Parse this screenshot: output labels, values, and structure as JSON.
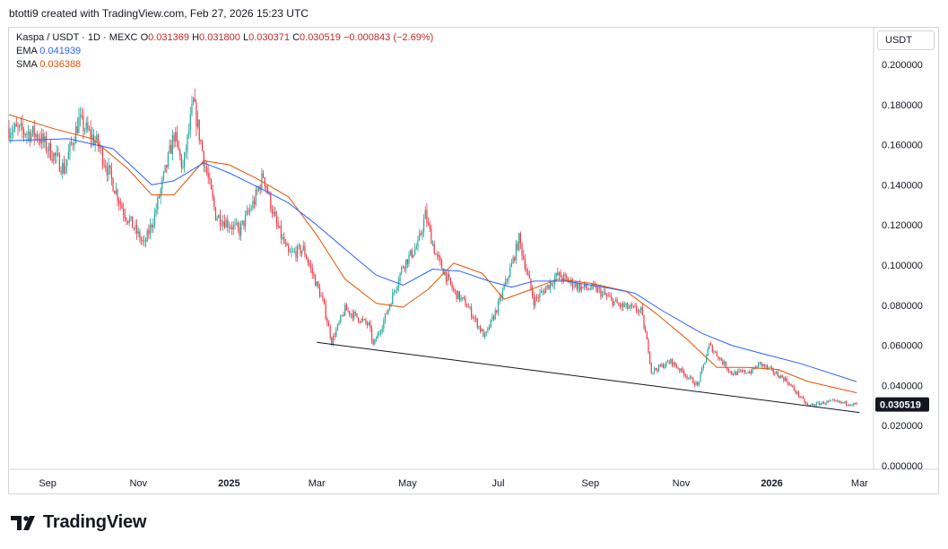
{
  "header": {
    "creator": "btotti9 created with TradingView.com, Feb 27, 2026 15:23 UTC"
  },
  "legend": {
    "symbol": "Kaspa / USDT · 1D · MEXC",
    "ohlc": {
      "o_label": "O",
      "o": "0.031369",
      "h_label": "H",
      "h": "0.031800",
      "l_label": "L",
      "l": "0.030371",
      "c_label": "C",
      "c": "0.030519",
      "change": "−0.000843 (−2.69%)"
    },
    "ema_label": "EMA",
    "ema_value": "0.041939",
    "sma_label": "SMA",
    "sma_value": "0.036388"
  },
  "currency": "USDT",
  "brand": {
    "name": "TradingView"
  },
  "colors": {
    "up": "#089981",
    "down": "#f23645",
    "candle_up": "#26a69a",
    "ema": "#2962ff",
    "sma": "#e65100",
    "trendline": "#131722",
    "price_tag_bg": "#131722"
  },
  "chart_data": {
    "type": "candlestick",
    "x_ticks": [
      {
        "date": "2024-09-01",
        "label": "Sep",
        "bold": false
      },
      {
        "date": "2024-11-01",
        "label": "Nov",
        "bold": false
      },
      {
        "date": "2025-01-01",
        "label": "2025",
        "bold": true
      },
      {
        "date": "2025-03-01",
        "label": "Mar",
        "bold": false
      },
      {
        "date": "2025-05-01",
        "label": "May",
        "bold": false
      },
      {
        "date": "2025-07-01",
        "label": "Jul",
        "bold": false
      },
      {
        "date": "2025-09-01",
        "label": "Sep",
        "bold": false
      },
      {
        "date": "2025-11-01",
        "label": "Nov",
        "bold": false
      },
      {
        "date": "2026-01-01",
        "label": "2026",
        "bold": true
      },
      {
        "date": "2026-03-01",
        "label": "Mar",
        "bold": false
      }
    ],
    "y_ticks": [
      "0.000000",
      "0.020000",
      "0.040000",
      "0.060000",
      "0.080000",
      "0.100000",
      "0.120000",
      "0.140000",
      "0.160000",
      "0.180000",
      "0.200000"
    ],
    "ylim": [
      0,
      0.2
    ],
    "xlim": [
      "2024-08-06",
      "2026-03-08"
    ],
    "last_price": "0.030519",
    "price_anchors": [
      [
        "2024-08-06",
        0.168
      ],
      [
        "2024-08-25",
        0.165
      ],
      [
        "2024-09-12",
        0.148
      ],
      [
        "2024-09-22",
        0.172
      ],
      [
        "2024-10-05",
        0.16
      ],
      [
        "2024-10-22",
        0.127
      ],
      [
        "2024-11-05",
        0.11
      ],
      [
        "2024-11-12",
        0.125
      ],
      [
        "2024-11-25",
        0.165
      ],
      [
        "2024-12-01",
        0.148
      ],
      [
        "2024-12-08",
        0.181
      ],
      [
        "2024-12-15",
        0.153
      ],
      [
        "2024-12-23",
        0.125
      ],
      [
        "2025-01-08",
        0.117
      ],
      [
        "2025-01-18",
        0.132
      ],
      [
        "2025-01-24",
        0.145
      ],
      [
        "2025-02-01",
        0.122
      ],
      [
        "2025-02-10",
        0.105
      ],
      [
        "2025-02-20",
        0.108
      ],
      [
        "2025-03-05",
        0.082
      ],
      [
        "2025-03-11",
        0.062
      ],
      [
        "2025-03-20",
        0.078
      ],
      [
        "2025-04-05",
        0.07
      ],
      [
        "2025-04-08",
        0.06
      ],
      [
        "2025-04-15",
        0.072
      ],
      [
        "2025-04-28",
        0.1
      ],
      [
        "2025-05-08",
        0.11
      ],
      [
        "2025-05-13",
        0.125
      ],
      [
        "2025-05-20",
        0.105
      ],
      [
        "2025-06-01",
        0.087
      ],
      [
        "2025-06-10",
        0.08
      ],
      [
        "2025-06-22",
        0.064
      ],
      [
        "2025-07-01",
        0.08
      ],
      [
        "2025-07-10",
        0.1
      ],
      [
        "2025-07-15",
        0.113
      ],
      [
        "2025-07-25",
        0.082
      ],
      [
        "2025-08-10",
        0.095
      ],
      [
        "2025-08-25",
        0.089
      ],
      [
        "2025-09-05",
        0.088
      ],
      [
        "2025-09-20",
        0.08
      ],
      [
        "2025-10-05",
        0.077
      ],
      [
        "2025-10-10",
        0.058
      ],
      [
        "2025-10-12",
        0.047
      ],
      [
        "2025-10-25",
        0.052
      ],
      [
        "2025-11-12",
        0.04
      ],
      [
        "2025-11-20",
        0.06
      ],
      [
        "2025-12-05",
        0.046
      ],
      [
        "2025-12-18",
        0.047
      ],
      [
        "2025-12-24",
        0.051
      ],
      [
        "2026-01-10",
        0.043
      ],
      [
        "2026-01-25",
        0.03
      ],
      [
        "2026-02-10",
        0.032
      ],
      [
        "2026-02-27",
        0.0305
      ]
    ],
    "ema_points": [
      [
        "2024-08-06",
        0.162
      ],
      [
        "2024-09-15",
        0.163
      ],
      [
        "2024-10-15",
        0.158
      ],
      [
        "2024-11-10",
        0.14
      ],
      [
        "2024-11-25",
        0.142
      ],
      [
        "2024-12-15",
        0.151
      ],
      [
        "2025-01-01",
        0.146
      ],
      [
        "2025-01-20",
        0.139
      ],
      [
        "2025-02-10",
        0.131
      ],
      [
        "2025-03-01",
        0.12
      ],
      [
        "2025-03-20",
        0.108
      ],
      [
        "2025-04-10",
        0.095
      ],
      [
        "2025-04-28",
        0.09
      ],
      [
        "2025-05-18",
        0.098
      ],
      [
        "2025-06-05",
        0.097
      ],
      [
        "2025-06-25",
        0.092
      ],
      [
        "2025-07-10",
        0.089
      ],
      [
        "2025-07-25",
        0.092
      ],
      [
        "2025-08-15",
        0.092
      ],
      [
        "2025-09-10",
        0.089
      ],
      [
        "2025-10-01",
        0.086
      ],
      [
        "2025-10-20",
        0.077
      ],
      [
        "2025-11-15",
        0.066
      ],
      [
        "2025-12-05",
        0.06
      ],
      [
        "2025-12-25",
        0.056
      ],
      [
        "2026-01-20",
        0.051
      ],
      [
        "2026-02-27",
        0.041939
      ]
    ],
    "sma_points": [
      [
        "2024-08-06",
        0.175
      ],
      [
        "2024-09-05",
        0.168
      ],
      [
        "2024-10-01",
        0.163
      ],
      [
        "2024-10-25",
        0.148
      ],
      [
        "2024-11-10",
        0.135
      ],
      [
        "2024-11-25",
        0.135
      ],
      [
        "2024-12-15",
        0.152
      ],
      [
        "2025-01-01",
        0.15
      ],
      [
        "2025-01-20",
        0.143
      ],
      [
        "2025-02-10",
        0.134
      ],
      [
        "2025-03-01",
        0.115
      ],
      [
        "2025-03-20",
        0.093
      ],
      [
        "2025-04-10",
        0.081
      ],
      [
        "2025-04-28",
        0.079
      ],
      [
        "2025-05-15",
        0.088
      ],
      [
        "2025-06-01",
        0.101
      ],
      [
        "2025-06-20",
        0.096
      ],
      [
        "2025-07-05",
        0.083
      ],
      [
        "2025-07-20",
        0.087
      ],
      [
        "2025-08-10",
        0.093
      ],
      [
        "2025-09-01",
        0.091
      ],
      [
        "2025-09-25",
        0.087
      ],
      [
        "2025-10-15",
        0.076
      ],
      [
        "2025-11-05",
        0.063
      ],
      [
        "2025-11-25",
        0.049
      ],
      [
        "2025-12-15",
        0.049
      ],
      [
        "2026-01-05",
        0.048
      ],
      [
        "2026-01-25",
        0.042
      ],
      [
        "2026-02-27",
        0.036388
      ]
    ],
    "trendline": [
      [
        "2025-03-01",
        0.0615
      ],
      [
        "2026-03-01",
        0.0265
      ]
    ],
    "indicators": [
      "EMA",
      "SMA"
    ]
  }
}
